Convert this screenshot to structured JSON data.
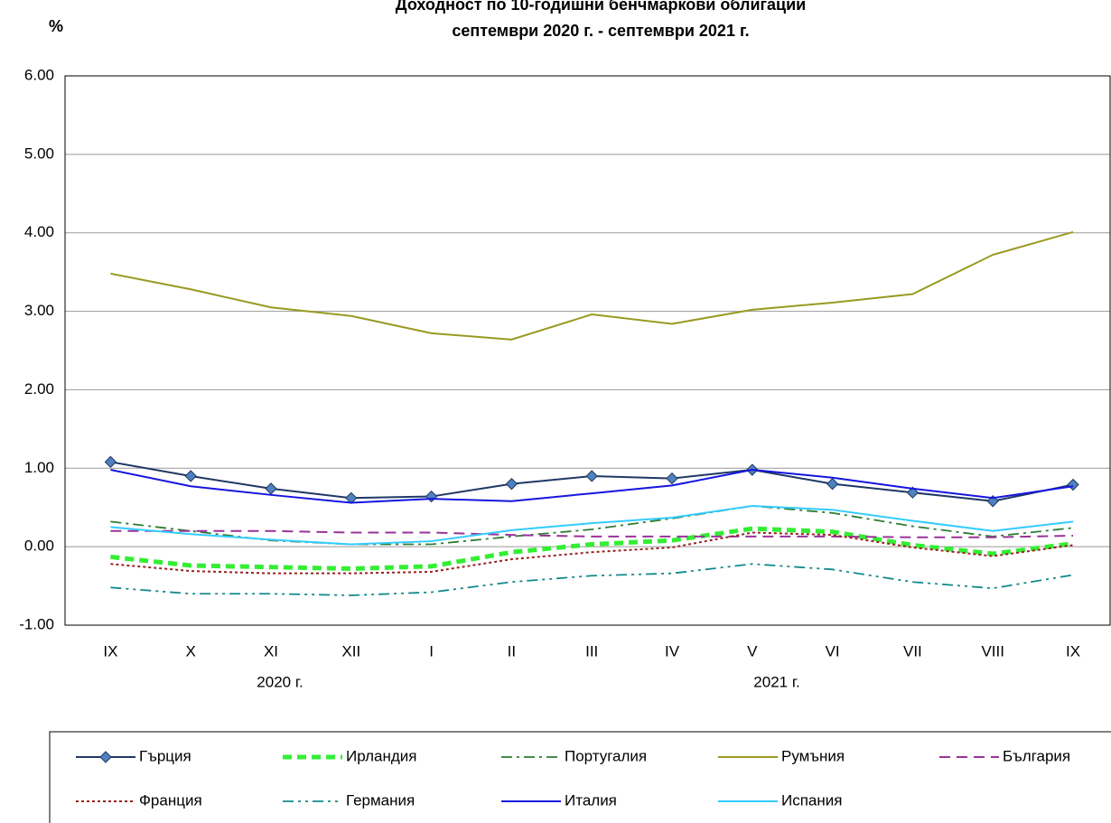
{
  "chart_data": {
    "type": "line",
    "title": "Доходност по 10-годишни бенчмаркови облигации",
    "subtitle": "септември 2020 г. - септември 2021 г.",
    "y_label": "%",
    "categories": [
      "IX",
      "X",
      "XI",
      "XII",
      "I",
      "II",
      "III",
      "IV",
      "V",
      "VI",
      "VII",
      "VIII",
      "IX"
    ],
    "year_labels": [
      "2020 г.",
      "2021 г."
    ],
    "ylim": [
      -1,
      6
    ],
    "yticks": [
      {
        "value": -1,
        "label": "-1.00"
      },
      {
        "value": 0,
        "label": "0.00"
      },
      {
        "value": 1,
        "label": "1.00"
      },
      {
        "value": 2,
        "label": "2.00"
      },
      {
        "value": 3,
        "label": "3.00"
      },
      {
        "value": 4,
        "label": "4.00"
      },
      {
        "value": 5,
        "label": "5.00"
      },
      {
        "value": 6,
        "label": "6.00"
      }
    ],
    "grid": true,
    "series": [
      {
        "name": "Гърция",
        "color": "#1f3864",
        "line_style": "solid",
        "marker": "diamond",
        "values": [
          1.08,
          0.9,
          0.74,
          0.62,
          0.64,
          0.8,
          0.9,
          0.87,
          0.98,
          0.8,
          0.69,
          0.58,
          0.79
        ]
      },
      {
        "name": "Ирландия",
        "color": "#33ee33",
        "line_style": "thick-dashed",
        "values": [
          -0.13,
          -0.24,
          -0.26,
          -0.28,
          -0.25,
          -0.07,
          0.03,
          0.08,
          0.23,
          0.19,
          0.02,
          -0.09,
          0.04
        ]
      },
      {
        "name": "Португалия",
        "color": "#2e7d32",
        "line_style": "dash-dot",
        "values": [
          0.32,
          0.2,
          0.08,
          0.03,
          0.03,
          0.13,
          0.22,
          0.36,
          0.52,
          0.43,
          0.26,
          0.13,
          0.24
        ]
      },
      {
        "name": "Румъния",
        "color": "#999922",
        "line_style": "solid",
        "values": [
          3.48,
          3.28,
          3.05,
          2.94,
          2.72,
          2.64,
          2.96,
          2.84,
          3.02,
          3.11,
          3.22,
          3.72,
          4.01
        ]
      },
      {
        "name": "България",
        "color": "#993399",
        "line_style": "dashed",
        "values": [
          0.2,
          0.2,
          0.2,
          0.18,
          0.18,
          0.15,
          0.13,
          0.13,
          0.13,
          0.13,
          0.12,
          0.12,
          0.14
        ]
      },
      {
        "name": "Франция",
        "color": "#992222",
        "line_style": "dotted",
        "values": [
          -0.22,
          -0.31,
          -0.34,
          -0.34,
          -0.32,
          -0.16,
          -0.07,
          -0.01,
          0.18,
          0.15,
          -0.01,
          -0.12,
          0.02
        ]
      },
      {
        "name": "Германия",
        "color": "#138a8a",
        "line_style": "dash-dot-dot",
        "values": [
          -0.52,
          -0.6,
          -0.6,
          -0.62,
          -0.58,
          -0.45,
          -0.37,
          -0.34,
          -0.22,
          -0.29,
          -0.45,
          -0.53,
          -0.36
        ]
      },
      {
        "name": "Италия",
        "color": "#1515e0",
        "line_style": "solid",
        "values": [
          0.98,
          0.77,
          0.66,
          0.56,
          0.61,
          0.58,
          0.68,
          0.78,
          0.98,
          0.88,
          0.74,
          0.62,
          0.77
        ]
      },
      {
        "name": "Испания",
        "color": "#33ccff",
        "line_style": "solid",
        "values": [
          0.25,
          0.16,
          0.09,
          0.03,
          0.07,
          0.21,
          0.3,
          0.37,
          0.52,
          0.47,
          0.33,
          0.2,
          0.32
        ]
      }
    ]
  }
}
